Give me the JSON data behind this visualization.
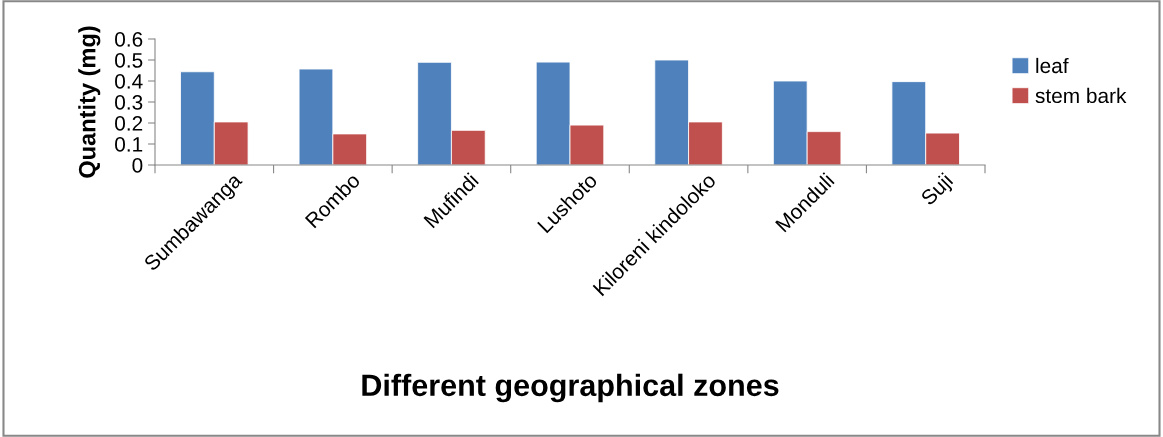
{
  "chart_data": {
    "type": "bar",
    "categories": [
      "Sumbawanga",
      "Rombo",
      "Mufindi",
      "Lushoto",
      "Kiloreni kindoloko",
      "Monduli",
      "Suji"
    ],
    "series": [
      {
        "name": "leaf",
        "color": "#4f81bd",
        "values": [
          0.444,
          0.457,
          0.489,
          0.49,
          0.5,
          0.4,
          0.397
        ]
      },
      {
        "name": "stem bark",
        "color": "#c0504d",
        "values": [
          0.205,
          0.148,
          0.165,
          0.19,
          0.205,
          0.159,
          0.152
        ]
      }
    ],
    "xlabel": "Different geographical zones",
    "ylabel": "Quantity (mg)",
    "ylim": [
      0,
      0.6
    ],
    "yticks": [
      {
        "value": 0,
        "label": "0"
      },
      0.1,
      0.2,
      0.3,
      0.4,
      0.5,
      0.6
    ],
    "grid": false,
    "legend": "top right"
  }
}
